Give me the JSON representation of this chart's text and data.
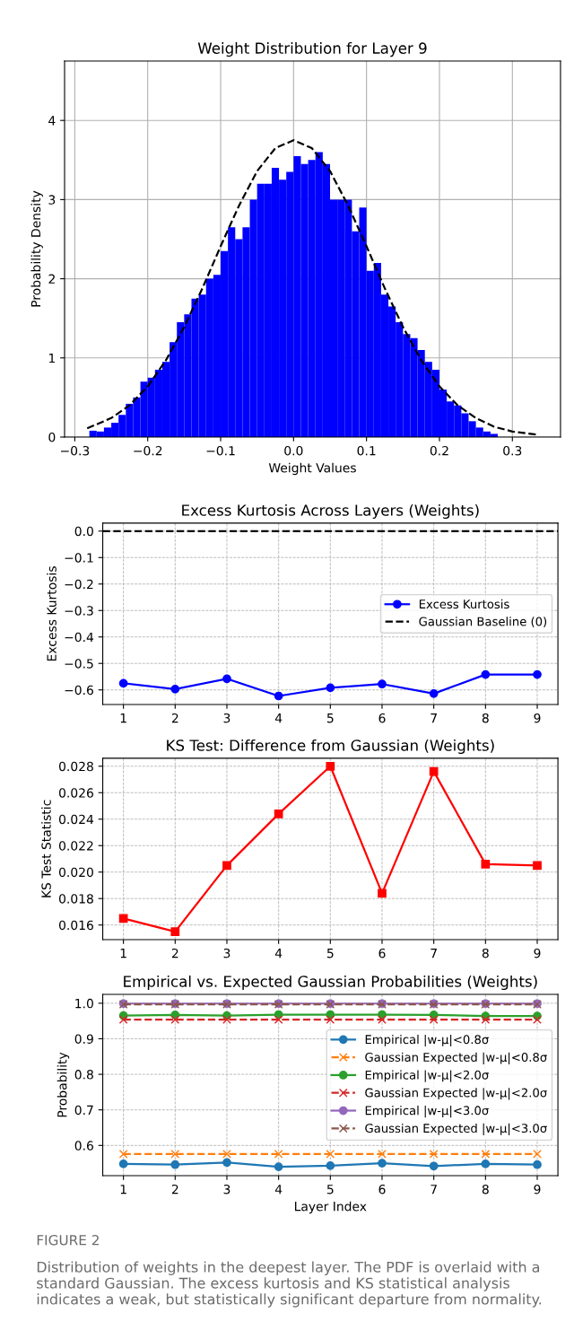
{
  "chart_data": [
    {
      "type": "histogram",
      "title": "Weight Distribution for Layer 9",
      "xlabel": "Weight Values",
      "ylabel": "Probability Density",
      "color": "#0000ff",
      "bins": [
        -0.28,
        -0.27,
        -0.26,
        -0.25,
        -0.24,
        -0.23,
        -0.22,
        -0.21,
        -0.2,
        -0.19,
        -0.18,
        -0.17,
        -0.16,
        -0.15,
        -0.14,
        -0.13,
        -0.12,
        -0.11,
        -0.1,
        -0.09,
        -0.08,
        -0.07,
        -0.06,
        -0.05,
        -0.04,
        -0.03,
        -0.02,
        -0.01,
        0,
        0.01,
        0.02,
        0.03,
        0.04,
        0.05,
        0.06,
        0.07,
        0.08,
        0.09,
        0.1,
        0.11,
        0.12,
        0.13,
        0.14,
        0.15,
        0.16,
        0.17,
        0.18,
        0.19,
        0.2,
        0.21,
        0.22,
        0.23,
        0.24,
        0.25,
        0.26,
        0.27,
        0.28
      ],
      "values": [
        0.08,
        0.07,
        0.12,
        0.18,
        0.28,
        0.42,
        0.5,
        0.7,
        0.75,
        0.85,
        0.95,
        1.2,
        1.45,
        1.55,
        1.75,
        1.8,
        2.0,
        2.05,
        2.35,
        2.65,
        2.5,
        2.65,
        3.0,
        3.2,
        3.2,
        3.4,
        3.25,
        3.35,
        3.55,
        3.45,
        3.5,
        3.6,
        3.45,
        3.0,
        3.0,
        3.0,
        2.6,
        2.9,
        2.1,
        2.2,
        1.8,
        1.65,
        1.45,
        1.3,
        1.25,
        1.1,
        0.95,
        0.85,
        0.6,
        0.45,
        0.4,
        0.3,
        0.2,
        0.12,
        0.07,
        0.04
      ],
      "series": [
        {
          "type": "line",
          "color": "#000000",
          "line_style": "dashed",
          "x": [
            -0.283,
            -0.25,
            -0.225,
            -0.2,
            -0.175,
            -0.15,
            -0.125,
            -0.1,
            -0.075,
            -0.05,
            -0.025,
            0,
            0.025,
            0.05,
            0.075,
            0.1,
            0.125,
            0.15,
            0.175,
            0.2,
            0.225,
            0.25,
            0.275,
            0.3,
            0.335
          ],
          "values": [
            0.11,
            0.24,
            0.4,
            0.64,
            0.97,
            1.39,
            1.88,
            2.41,
            2.92,
            3.36,
            3.65,
            3.75,
            3.65,
            3.36,
            2.92,
            2.41,
            1.88,
            1.39,
            0.97,
            0.64,
            0.4,
            0.24,
            0.13,
            0.07,
            0.03
          ]
        }
      ],
      "xlim": [
        -0.314,
        0.366
      ],
      "ylim": [
        0,
        4.75
      ],
      "xticks": [
        {
          "value": -0.3,
          "label": "−0.3"
        },
        {
          "value": -0.2,
          "label": "−0.2"
        },
        {
          "value": -0.1,
          "label": "−0.1"
        },
        {
          "value": 0,
          "label": "0.0"
        },
        0.1,
        0.2,
        0.3
      ],
      "yticks": [
        0,
        1,
        2,
        3,
        4
      ],
      "grid": true,
      "legend": false
    },
    {
      "type": "line",
      "title": "Excess Kurtosis Across Layers (Weights)",
      "ylabel": "Excess Kurtosis",
      "x": [
        1,
        2,
        3,
        4,
        5,
        6,
        7,
        8,
        9
      ],
      "series": [
        {
          "name": "Excess Kurtosis",
          "color": "#0000ff",
          "marker": "circle",
          "line_style": "solid",
          "values": [
            -0.575,
            -0.597,
            -0.558,
            -0.623,
            -0.592,
            -0.578,
            -0.614,
            -0.542,
            -0.542
          ]
        }
      ],
      "ref_lines": [
        {
          "axis": "y",
          "value": 0,
          "label": "Gaussian Baseline (0)",
          "color": "#000000",
          "line_style": "dashed"
        }
      ],
      "xlim": [
        0.6,
        9.4
      ],
      "ylim": [
        -0.655,
        0.03
      ],
      "xticks": [
        1,
        2,
        3,
        4,
        5,
        6,
        7,
        8,
        9
      ],
      "yticks": [
        {
          "value": 0,
          "label": "0.0"
        },
        {
          "value": -0.1,
          "label": "−0.1"
        },
        {
          "value": -0.2,
          "label": "−0.2"
        },
        {
          "value": -0.3,
          "label": "−0.3"
        },
        {
          "value": -0.4,
          "label": "−0.4"
        },
        {
          "value": -0.5,
          "label": "−0.5"
        },
        {
          "value": -0.6,
          "label": "−0.6"
        }
      ],
      "grid": true,
      "legend": "center right"
    },
    {
      "type": "line",
      "title": "KS Test: Difference from Gaussian (Weights)",
      "ylabel": "KS Test Statistic",
      "x": [
        1,
        2,
        3,
        4,
        5,
        6,
        7,
        8,
        9
      ],
      "series": [
        {
          "color": "#ff0000",
          "marker": "square",
          "line_style": "solid",
          "values": [
            0.0165,
            0.0155,
            0.0205,
            0.0244,
            0.028,
            0.0184,
            0.0276,
            0.0206,
            0.0205
          ]
        }
      ],
      "xlim": [
        0.6,
        9.4
      ],
      "ylim": [
        0.0149,
        0.0286
      ],
      "xticks": [
        1,
        2,
        3,
        4,
        5,
        6,
        7,
        8,
        9
      ],
      "yticks": [
        {
          "value": 0.016,
          "label": "0.016"
        },
        {
          "value": 0.018,
          "label": "0.018"
        },
        {
          "value": 0.02,
          "label": "0.020"
        },
        {
          "value": 0.022,
          "label": "0.022"
        },
        {
          "value": 0.024,
          "label": "0.024"
        },
        {
          "value": 0.026,
          "label": "0.026"
        },
        {
          "value": 0.028,
          "label": "0.028"
        }
      ],
      "grid": true,
      "legend": false
    },
    {
      "type": "line",
      "title": "Empirical vs. Expected Gaussian Probabilities (Weights)",
      "xlabel": "Layer Index",
      "ylabel": "Probability",
      "x": [
        1,
        2,
        3,
        4,
        5,
        6,
        7,
        8,
        9
      ],
      "series": [
        {
          "name": "Empirical |w-μ|<0.8σ",
          "color": "#1f77b4",
          "marker": "circle",
          "line_style": "solid",
          "values": [
            0.548,
            0.546,
            0.552,
            0.54,
            0.543,
            0.55,
            0.542,
            0.548,
            0.546
          ]
        },
        {
          "name": "Gaussian Expected |w-μ|<0.8σ",
          "color": "#ff7f0e",
          "marker": "cross",
          "line_style": "dashed",
          "values": [
            0.576,
            0.576,
            0.576,
            0.576,
            0.576,
            0.576,
            0.576,
            0.576,
            0.576
          ]
        },
        {
          "name": "Empirical |w-μ|<2.0σ",
          "color": "#2ca02c",
          "marker": "circle",
          "line_style": "solid",
          "values": [
            0.965,
            0.967,
            0.965,
            0.968,
            0.968,
            0.968,
            0.967,
            0.964,
            0.964
          ]
        },
        {
          "name": "Gaussian Expected |w-μ|<2.0σ",
          "color": "#d62728",
          "marker": "cross",
          "line_style": "dashed",
          "values": [
            0.954,
            0.954,
            0.954,
            0.954,
            0.954,
            0.954,
            0.954,
            0.954,
            0.954
          ]
        },
        {
          "name": "Empirical |w-μ|<3.0σ",
          "color": "#9467bd",
          "marker": "circle",
          "line_style": "solid",
          "values": [
            0.999,
            0.999,
            0.999,
            0.999,
            0.999,
            0.999,
            0.999,
            0.999,
            0.999
          ]
        },
        {
          "name": "Gaussian Expected |w-μ|<3.0σ",
          "color": "#8c564b",
          "marker": "cross",
          "line_style": "dashed",
          "values": [
            0.997,
            0.997,
            0.997,
            0.997,
            0.997,
            0.997,
            0.997,
            0.997,
            0.997
          ]
        }
      ],
      "xlim": [
        0.6,
        9.4
      ],
      "ylim": [
        0.515,
        1.025
      ],
      "xticks": [
        1,
        2,
        3,
        4,
        5,
        6,
        7,
        8,
        9
      ],
      "yticks": [
        0.6,
        0.7,
        0.8,
        0.9,
        {
          "value": 1.0,
          "label": "1.0"
        }
      ],
      "grid": true,
      "legend": "center right",
      "annotations": [
        "FIGURE 2",
        "Distribution of weights in the deepest layer. The PDF is overlaid with a standard Gaussian. The excess kurtosis and KS statistical analysis indicates a weak, but statistically significant departure from normality."
      ]
    }
  ]
}
